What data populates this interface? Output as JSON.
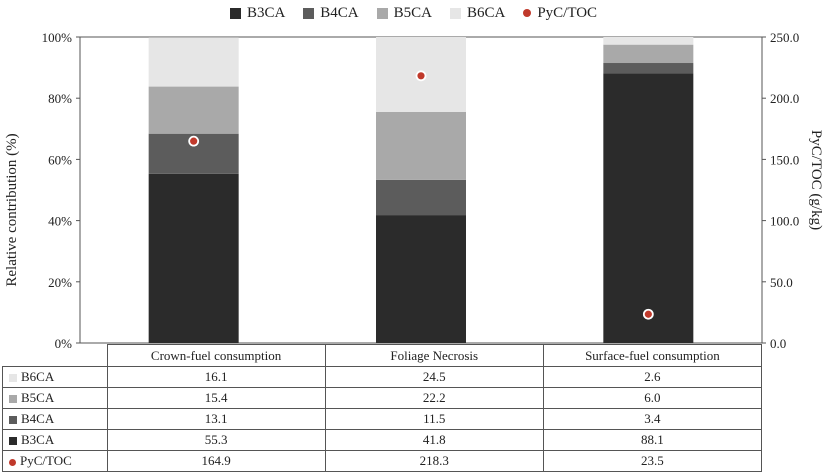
{
  "chart_data": {
    "type": "bar",
    "stacked": true,
    "categories": [
      "Crown-fuel consumption",
      "Foliage Necrosis",
      "Surface-fuel consumption"
    ],
    "series": [
      {
        "name": "B3CA",
        "values": [
          55.3,
          41.8,
          88.1
        ],
        "color": "#2b2b2b"
      },
      {
        "name": "B4CA",
        "values": [
          13.1,
          11.5,
          3.4
        ],
        "color": "#5c5c5c"
      },
      {
        "name": "B5CA",
        "values": [
          15.4,
          22.2,
          6.0
        ],
        "color": "#a9a9a9"
      },
      {
        "name": "B6CA",
        "values": [
          16.1,
          24.5,
          2.6
        ],
        "color": "#e6e6e6"
      }
    ],
    "scatter_series": {
      "name": "PyC/TOC",
      "values": [
        164.9,
        218.3,
        23.5
      ],
      "color": "#c0392b",
      "axis": "right"
    },
    "ylabel": "Relative contribution (%)",
    "ylim": [
      0,
      100
    ],
    "yticks": [
      "0%",
      "20%",
      "40%",
      "60%",
      "80%",
      "100%"
    ],
    "y2label": "PyC/TOC (g/kg)",
    "y2lim": [
      0,
      250
    ],
    "y2ticks": [
      "0.0",
      "50.0",
      "100.0",
      "150.0",
      "200.0",
      "250.0"
    ],
    "legend_position": "top-center"
  },
  "legend": [
    "B3CA",
    "B4CA",
    "B5CA",
    "B6CA",
    "PyC/TOC"
  ],
  "table": {
    "columns": [
      "Crown-fuel consumption",
      "Foliage Necrosis",
      "Surface-fuel consumption"
    ],
    "rows": [
      {
        "label": "B6CA",
        "values": [
          "16.1",
          "24.5",
          "2.6"
        ]
      },
      {
        "label": "B5CA",
        "values": [
          "15.4",
          "22.2",
          "6.0"
        ]
      },
      {
        "label": "B4CA",
        "values": [
          "13.1",
          "11.5",
          "3.4"
        ]
      },
      {
        "label": "B3CA",
        "values": [
          "55.3",
          "41.8",
          "88.1"
        ]
      },
      {
        "label": "PyC/TOC",
        "values": [
          "164.9",
          "218.3",
          "23.5"
        ]
      }
    ]
  }
}
